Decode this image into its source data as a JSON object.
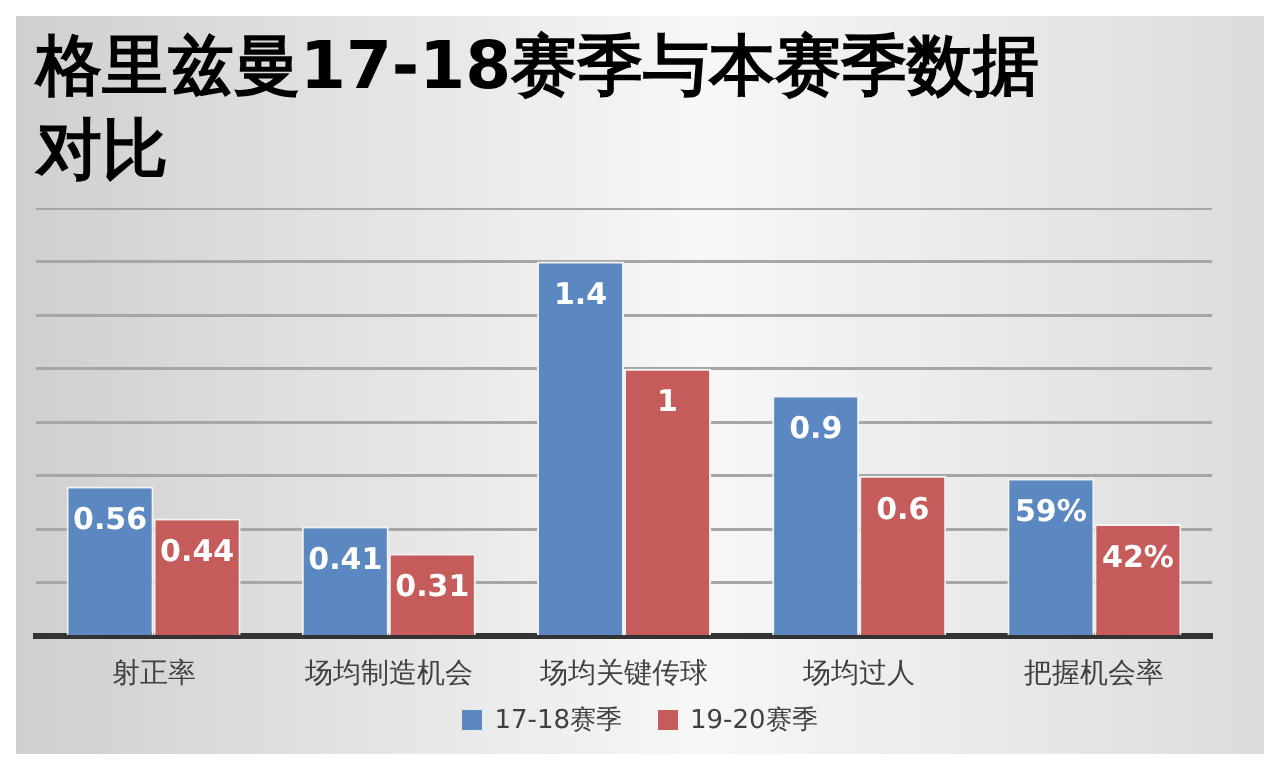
{
  "chart_data": {
    "type": "bar",
    "title": "格里兹曼17-18赛季与本赛季数据对比",
    "categories": [
      "射正率",
      "场均制造机会",
      "场均关键传球",
      "场均过人",
      "把握机会率"
    ],
    "series": [
      {
        "name": "17-18赛季",
        "color": "#5b88c0",
        "values": [
          0.56,
          0.41,
          1.4,
          0.9,
          0.59
        ],
        "value_labels": [
          "0.56",
          "0.41",
          "1.4",
          "0.9",
          "59%"
        ]
      },
      {
        "name": "19-20赛季",
        "color": "#c65b5b",
        "values": [
          0.44,
          0.31,
          1,
          0.6,
          0.42
        ],
        "value_labels": [
          "0.44",
          "0.31",
          "1",
          "0.6",
          "42%"
        ]
      }
    ],
    "ylim": [
      0,
      1.6
    ],
    "yticks": [
      {
        "value": 0,
        "label": null
      },
      {
        "value": 0.2,
        "label": null
      },
      {
        "value": 0.4,
        "label": null
      },
      {
        "value": 0.6,
        "label": null
      },
      {
        "value": 0.8,
        "label": null
      },
      {
        "value": 1,
        "label": null
      },
      {
        "value": 1.2,
        "label": null
      },
      {
        "value": 1.4,
        "label": null
      },
      {
        "value": 1.6,
        "label": null
      }
    ],
    "grid": "y",
    "legend": "bottom",
    "tick_labels": "x"
  }
}
